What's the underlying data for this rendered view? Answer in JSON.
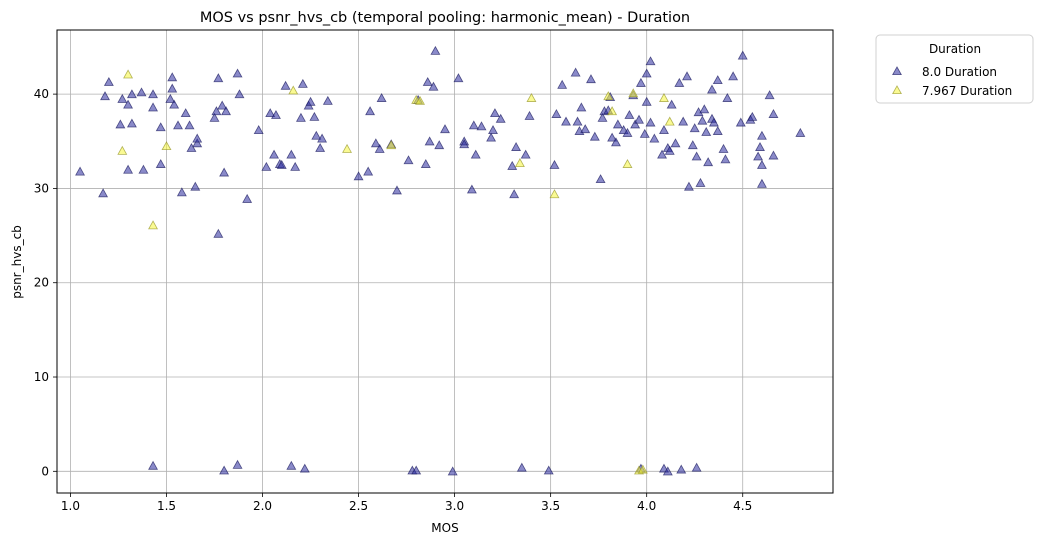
{
  "chart_data": {
    "type": "scatter",
    "title": "MOS vs psnr_hvs_cb (temporal pooling: harmonic_mean) - Duration",
    "xlabel": "MOS",
    "ylabel": "psnr_hvs_cb",
    "xlim": [
      0.93,
      4.97
    ],
    "ylim": [
      -2.3,
      46.8
    ],
    "xticks": [
      1.0,
      1.5,
      2.0,
      2.5,
      3.0,
      3.5,
      4.0,
      4.5
    ],
    "xtick_labels": [
      "1.0",
      "1.5",
      "2.0",
      "2.5",
      "3.0",
      "3.5",
      "4.0",
      "4.5"
    ],
    "yticks": [
      0,
      10,
      20,
      30,
      40
    ],
    "ytick_labels": [
      "0",
      "10",
      "20",
      "30",
      "40"
    ],
    "grid": true,
    "marker": "triangle",
    "legend": {
      "title": "Duration",
      "placement": "outside-top-right"
    },
    "series": [
      {
        "name": "8.0 Duration",
        "color": "#2a2a9c",
        "points": [
          [
            1.05,
            31.8
          ],
          [
            1.17,
            29.5
          ],
          [
            1.18,
            39.8
          ],
          [
            1.2,
            41.3
          ],
          [
            1.26,
            36.8
          ],
          [
            1.27,
            39.5
          ],
          [
            1.3,
            32.0
          ],
          [
            1.3,
            38.9
          ],
          [
            1.32,
            40.0
          ],
          [
            1.32,
            36.9
          ],
          [
            1.37,
            40.2
          ],
          [
            1.38,
            32.0
          ],
          [
            1.43,
            40.0
          ],
          [
            1.43,
            38.6
          ],
          [
            1.47,
            36.5
          ],
          [
            1.47,
            32.6
          ],
          [
            1.52,
            39.5
          ],
          [
            1.53,
            40.6
          ],
          [
            1.53,
            41.8
          ],
          [
            1.54,
            38.9
          ],
          [
            1.56,
            36.7
          ],
          [
            1.58,
            29.6
          ],
          [
            1.6,
            38.0
          ],
          [
            1.62,
            36.7
          ],
          [
            1.63,
            34.3
          ],
          [
            1.65,
            30.2
          ],
          [
            1.66,
            34.8
          ],
          [
            1.66,
            35.3
          ],
          [
            1.75,
            37.5
          ],
          [
            1.76,
            38.2
          ],
          [
            1.77,
            41.7
          ],
          [
            1.77,
            25.2
          ],
          [
            1.79,
            38.8
          ],
          [
            1.8,
            31.7
          ],
          [
            1.81,
            38.2
          ],
          [
            1.87,
            42.2
          ],
          [
            1.88,
            40.0
          ],
          [
            1.92,
            28.9
          ],
          [
            1.98,
            36.2
          ],
          [
            2.02,
            32.3
          ],
          [
            2.04,
            38.0
          ],
          [
            2.06,
            33.6
          ],
          [
            2.07,
            37.8
          ],
          [
            2.09,
            32.6
          ],
          [
            2.1,
            32.5
          ],
          [
            2.12,
            40.9
          ],
          [
            2.15,
            33.6
          ],
          [
            2.17,
            32.3
          ],
          [
            2.2,
            37.5
          ],
          [
            2.21,
            41.1
          ],
          [
            2.24,
            38.8
          ],
          [
            2.25,
            39.2
          ],
          [
            2.27,
            37.6
          ],
          [
            2.28,
            35.6
          ],
          [
            2.3,
            34.3
          ],
          [
            2.31,
            35.3
          ],
          [
            2.34,
            39.3
          ],
          [
            2.5,
            31.3
          ],
          [
            2.55,
            31.8
          ],
          [
            2.56,
            38.2
          ],
          [
            2.59,
            34.8
          ],
          [
            2.61,
            34.2
          ],
          [
            2.62,
            39.6
          ],
          [
            2.67,
            34.7
          ],
          [
            2.7,
            29.8
          ],
          [
            2.76,
            33.0
          ],
          [
            2.81,
            39.4
          ],
          [
            2.85,
            32.6
          ],
          [
            2.86,
            41.3
          ],
          [
            2.87,
            35.0
          ],
          [
            2.89,
            40.8
          ],
          [
            2.9,
            44.6
          ],
          [
            2.92,
            34.6
          ],
          [
            2.95,
            36.3
          ],
          [
            3.02,
            41.7
          ],
          [
            3.05,
            35.0
          ],
          [
            3.05,
            34.7
          ],
          [
            3.09,
            29.9
          ],
          [
            3.1,
            36.7
          ],
          [
            3.11,
            33.6
          ],
          [
            3.14,
            36.6
          ],
          [
            3.19,
            35.4
          ],
          [
            3.2,
            36.2
          ],
          [
            3.21,
            38.0
          ],
          [
            3.24,
            37.4
          ],
          [
            3.3,
            32.4
          ],
          [
            3.31,
            29.4
          ],
          [
            3.32,
            34.4
          ],
          [
            3.37,
            33.6
          ],
          [
            3.39,
            37.7
          ],
          [
            3.52,
            32.5
          ],
          [
            3.53,
            37.9
          ],
          [
            3.56,
            41.0
          ],
          [
            3.58,
            37.1
          ],
          [
            3.63,
            42.3
          ],
          [
            3.64,
            37.1
          ],
          [
            3.65,
            36.1
          ],
          [
            3.66,
            38.6
          ],
          [
            3.68,
            36.3
          ],
          [
            3.71,
            41.6
          ],
          [
            3.73,
            35.5
          ],
          [
            3.76,
            31.0
          ],
          [
            3.77,
            37.5
          ],
          [
            3.78,
            38.2
          ],
          [
            3.8,
            38.3
          ],
          [
            3.81,
            39.7
          ],
          [
            3.82,
            35.4
          ],
          [
            3.84,
            34.9
          ],
          [
            3.85,
            36.8
          ],
          [
            3.88,
            36.2
          ],
          [
            3.9,
            35.9
          ],
          [
            3.91,
            37.8
          ],
          [
            3.93,
            39.9
          ],
          [
            3.94,
            36.8
          ],
          [
            3.96,
            37.3
          ],
          [
            3.97,
            41.2
          ],
          [
            3.99,
            35.8
          ],
          [
            4.0,
            42.2
          ],
          [
            4.0,
            39.2
          ],
          [
            4.02,
            43.5
          ],
          [
            4.02,
            37.0
          ],
          [
            4.04,
            35.3
          ],
          [
            4.08,
            33.6
          ],
          [
            4.09,
            36.2
          ],
          [
            4.11,
            34.3
          ],
          [
            4.12,
            34.0
          ],
          [
            4.13,
            38.9
          ],
          [
            4.15,
            34.8
          ],
          [
            4.17,
            41.2
          ],
          [
            4.19,
            37.1
          ],
          [
            4.21,
            41.9
          ],
          [
            4.22,
            30.2
          ],
          [
            4.24,
            34.6
          ],
          [
            4.25,
            36.4
          ],
          [
            4.26,
            33.4
          ],
          [
            4.27,
            38.1
          ],
          [
            4.28,
            30.6
          ],
          [
            4.29,
            37.2
          ],
          [
            4.3,
            38.4
          ],
          [
            4.31,
            36.0
          ],
          [
            4.32,
            32.8
          ],
          [
            4.34,
            37.4
          ],
          [
            4.34,
            40.5
          ],
          [
            4.35,
            37.0
          ],
          [
            4.37,
            36.1
          ],
          [
            4.37,
            41.5
          ],
          [
            4.4,
            34.2
          ],
          [
            4.41,
            33.1
          ],
          [
            4.42,
            39.6
          ],
          [
            4.45,
            41.9
          ],
          [
            4.49,
            37.0
          ],
          [
            4.5,
            44.1
          ],
          [
            4.54,
            37.3
          ],
          [
            4.55,
            37.6
          ],
          [
            4.58,
            33.4
          ],
          [
            4.59,
            34.4
          ],
          [
            4.6,
            32.5
          ],
          [
            4.6,
            35.6
          ],
          [
            4.6,
            30.5
          ],
          [
            4.64,
            39.9
          ],
          [
            4.66,
            37.9
          ],
          [
            4.66,
            33.5
          ],
          [
            4.8,
            35.9
          ],
          [
            1.43,
            0.6
          ],
          [
            1.8,
            0.1
          ],
          [
            1.87,
            0.7
          ],
          [
            2.15,
            0.6
          ],
          [
            2.22,
            0.3
          ],
          [
            2.78,
            0.1
          ],
          [
            2.8,
            0.1
          ],
          [
            2.99,
            0.0
          ],
          [
            3.35,
            0.4
          ],
          [
            3.49,
            0.1
          ],
          [
            3.97,
            0.3
          ],
          [
            4.09,
            0.3
          ],
          [
            4.11,
            0.0
          ],
          [
            4.18,
            0.2
          ],
          [
            4.26,
            0.4
          ]
        ]
      },
      {
        "name": "7.967 Duration",
        "color": "#f5f53a",
        "points": [
          [
            1.27,
            34.0
          ],
          [
            1.3,
            42.1
          ],
          [
            1.43,
            26.1
          ],
          [
            1.5,
            34.5
          ],
          [
            2.16,
            40.4
          ],
          [
            2.44,
            34.2
          ],
          [
            2.67,
            34.6
          ],
          [
            2.8,
            39.4
          ],
          [
            2.82,
            39.3
          ],
          [
            3.34,
            32.7
          ],
          [
            3.4,
            39.6
          ],
          [
            3.52,
            29.4
          ],
          [
            3.8,
            39.8
          ],
          [
            3.82,
            38.2
          ],
          [
            3.9,
            32.6
          ],
          [
            3.93,
            40.1
          ],
          [
            4.09,
            39.6
          ],
          [
            4.12,
            37.1
          ],
          [
            3.96,
            0.1
          ],
          [
            3.98,
            0.2
          ]
        ]
      }
    ]
  }
}
